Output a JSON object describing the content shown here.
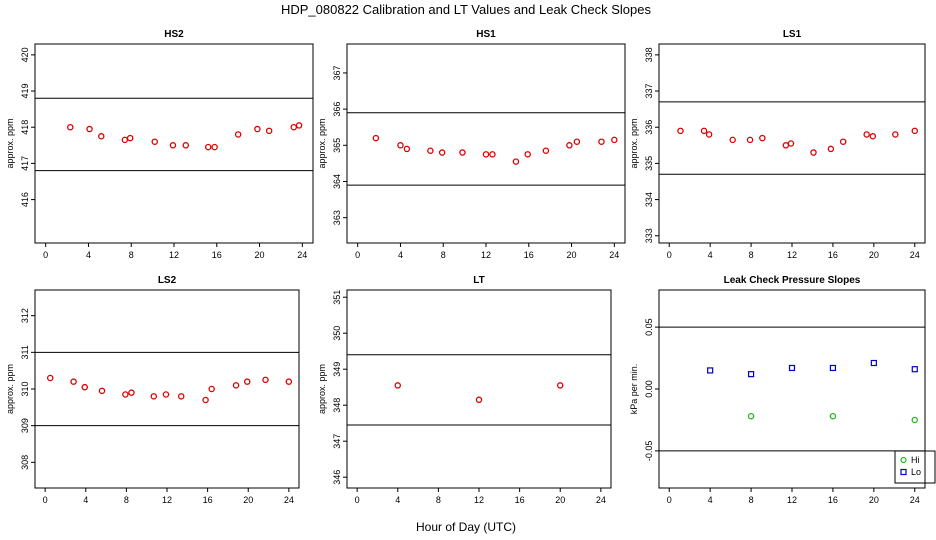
{
  "figure": {
    "title": "HDP_080822  Calibration and LT Values and Leak Check Slopes",
    "x_axis_title": "Hour of Day (UTC)"
  },
  "chart_data": [
    {
      "type": "scatter",
      "title": "HS2",
      "xlabel": "",
      "ylabel": "approx. ppm",
      "xlim": [
        -1,
        25
      ],
      "ylim": [
        414.8,
        420.3
      ],
      "x_ticks": [
        0,
        4,
        8,
        12,
        16,
        20,
        24
      ],
      "y_ticks": [
        416,
        417,
        418,
        419,
        420
      ],
      "hlines": [
        416.8,
        418.8
      ],
      "grid": false,
      "series": [
        {
          "color": "#dd0000",
          "marker": "circle",
          "x": [
            2.3,
            4.1,
            5.2,
            7.4,
            7.9,
            10.2,
            11.9,
            13.1,
            15.2,
            15.8,
            18.0,
            19.8,
            20.9,
            23.2,
            23.7
          ],
          "y": [
            418.0,
            417.95,
            417.75,
            417.65,
            417.7,
            417.6,
            417.5,
            417.5,
            417.45,
            417.45,
            417.8,
            417.95,
            417.9,
            418.0,
            418.05
          ]
        }
      ]
    },
    {
      "type": "scatter",
      "title": "HS1",
      "xlabel": "",
      "ylabel": "approx. ppm",
      "xlim": [
        -1,
        25
      ],
      "ylim": [
        362.3,
        367.8
      ],
      "x_ticks": [
        0,
        4,
        8,
        12,
        16,
        20,
        24
      ],
      "y_ticks": [
        363,
        364,
        365,
        366,
        367
      ],
      "hlines": [
        363.9,
        365.9
      ],
      "grid": false,
      "series": [
        {
          "color": "#dd0000",
          "marker": "circle",
          "x": [
            1.7,
            4.0,
            4.6,
            6.8,
            7.9,
            9.8,
            12.0,
            12.6,
            14.8,
            15.9,
            17.6,
            19.8,
            20.5,
            22.8,
            24.0
          ],
          "y": [
            365.2,
            365.0,
            364.9,
            364.85,
            364.8,
            364.8,
            364.75,
            364.75,
            364.55,
            364.75,
            364.85,
            365.0,
            365.1,
            365.1,
            365.15
          ]
        }
      ]
    },
    {
      "type": "scatter",
      "title": "LS1",
      "xlabel": "",
      "ylabel": "approx. ppm",
      "xlim": [
        -1,
        25
      ],
      "ylim": [
        332.8,
        338.3
      ],
      "x_ticks": [
        0,
        4,
        8,
        12,
        16,
        20,
        24
      ],
      "y_ticks": [
        333,
        334,
        335,
        336,
        337,
        338
      ],
      "hlines": [
        334.7,
        336.7
      ],
      "grid": false,
      "series": [
        {
          "color": "#dd0000",
          "marker": "circle",
          "x": [
            1.1,
            3.4,
            3.9,
            6.2,
            7.9,
            9.1,
            11.4,
            11.9,
            14.1,
            15.8,
            17.0,
            19.3,
            19.9,
            22.1,
            24.0
          ],
          "y": [
            335.9,
            335.9,
            335.8,
            335.65,
            335.65,
            335.7,
            335.5,
            335.55,
            335.3,
            335.4,
            335.6,
            335.8,
            335.75,
            335.8,
            335.9
          ]
        }
      ]
    },
    {
      "type": "scatter",
      "title": "LS2",
      "xlabel": "",
      "ylabel": "approx. ppm",
      "xlim": [
        -1,
        25
      ],
      "ylim": [
        307.3,
        312.7
      ],
      "x_ticks": [
        0,
        4,
        8,
        12,
        16,
        20,
        24
      ],
      "y_ticks": [
        308,
        309,
        310,
        311,
        312
      ],
      "hlines": [
        309.0,
        311.0
      ],
      "grid": false,
      "series": [
        {
          "color": "#dd0000",
          "marker": "circle",
          "x": [
            0.5,
            2.8,
            3.9,
            5.6,
            7.9,
            8.5,
            10.7,
            11.9,
            13.4,
            15.8,
            16.4,
            18.8,
            19.9,
            21.7,
            24.0
          ],
          "y": [
            310.3,
            310.2,
            310.05,
            309.95,
            309.85,
            309.9,
            309.8,
            309.85,
            309.8,
            309.7,
            310.0,
            310.1,
            310.2,
            310.25,
            310.2
          ]
        }
      ]
    },
    {
      "type": "scatter",
      "title": "LT",
      "xlabel": "",
      "ylabel": "approx. ppm",
      "xlim": [
        -1,
        25
      ],
      "ylim": [
        345.7,
        351.2
      ],
      "x_ticks": [
        0,
        4,
        8,
        12,
        16,
        20,
        24
      ],
      "y_ticks": [
        346,
        347,
        348,
        349,
        350,
        351
      ],
      "hlines": [
        347.45,
        349.4
      ],
      "grid": false,
      "series": [
        {
          "color": "#dd0000",
          "marker": "circle",
          "x": [
            4.0,
            12.0,
            20.0
          ],
          "y": [
            348.55,
            348.15,
            348.55
          ]
        }
      ]
    },
    {
      "type": "scatter",
      "title": "Leak Check Pressure Slopes",
      "xlabel": "",
      "ylabel": "kPa per min.",
      "xlim": [
        -1,
        25
      ],
      "ylim": [
        -0.08,
        0.08
      ],
      "x_ticks": [
        0,
        4,
        8,
        12,
        16,
        20,
        24
      ],
      "y_ticks": [
        -0.05,
        0.0,
        0.05
      ],
      "y_tick_labels": [
        "-0.05",
        "0.00",
        "0.05"
      ],
      "hlines": [
        -0.05,
        0.05
      ],
      "grid": false,
      "legend_position": "bottom-right",
      "series": [
        {
          "name": "Hi",
          "color": "#22bb22",
          "marker": "circle",
          "x": [
            8.0,
            16.0,
            24.0
          ],
          "y": [
            -0.022,
            -0.022,
            -0.025
          ]
        },
        {
          "name": "Lo",
          "color": "#0000cc",
          "marker": "square",
          "x": [
            4.0,
            8.0,
            12.0,
            16.0,
            20.0,
            24.0
          ],
          "y": [
            0.015,
            0.012,
            0.017,
            0.017,
            0.021,
            0.016
          ]
        }
      ]
    }
  ]
}
